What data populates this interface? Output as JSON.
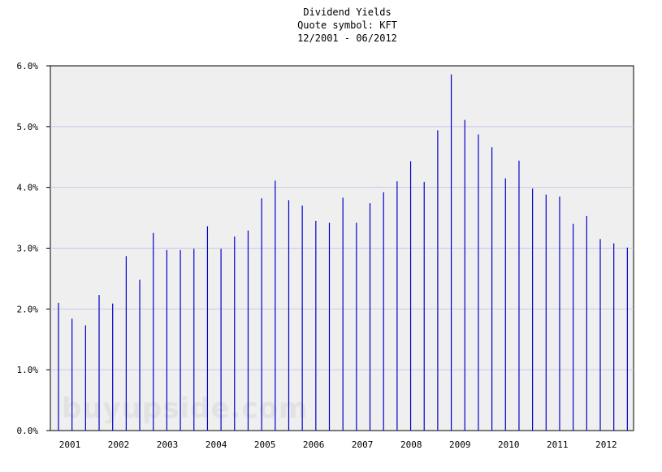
{
  "chart_data": {
    "type": "bar",
    "title": "Dividend Yields",
    "subtitle": "Quote symbol: KFT",
    "date_range": "12/2001 - 06/2012",
    "watermark": "buyupside.com",
    "ylim": [
      0,
      6
    ],
    "ytick_labels": [
      "0.0%",
      "1.0%",
      "2.0%",
      "3.0%",
      "4.0%",
      "5.0%",
      "6.0%"
    ],
    "xtick_labels": [
      "2001",
      "2002",
      "2003",
      "2004",
      "2005",
      "2006",
      "2007",
      "2008",
      "2009",
      "2010",
      "2011",
      "2012"
    ],
    "grid": true,
    "colors": {
      "bars": "#0000cc",
      "plot_background": "#efefef",
      "grid": "#c8c8e8"
    },
    "categories": [
      "2001-12",
      "2002-03",
      "2002-06",
      "2002-09",
      "2002-12",
      "2003-03",
      "2003-06",
      "2003-09",
      "2003-12",
      "2004-03",
      "2004-06",
      "2004-09",
      "2004-12",
      "2005-03",
      "2005-06",
      "2005-09",
      "2005-12",
      "2006-03",
      "2006-06",
      "2006-09",
      "2006-12",
      "2007-03",
      "2007-06",
      "2007-09",
      "2007-12",
      "2008-03",
      "2008-06",
      "2008-09",
      "2008-12",
      "2009-03",
      "2009-06",
      "2009-09",
      "2009-12",
      "2010-03",
      "2010-06",
      "2010-09",
      "2010-12",
      "2011-03",
      "2011-06",
      "2011-09",
      "2011-12",
      "2012-03",
      "2012-06"
    ],
    "values": [
      2.1,
      1.84,
      1.73,
      2.23,
      2.09,
      2.87,
      2.48,
      3.25,
      2.97,
      2.97,
      2.99,
      3.36,
      2.99,
      3.19,
      3.29,
      3.82,
      4.11,
      3.79,
      3.7,
      3.45,
      3.42,
      3.83,
      3.42,
      3.74,
      3.92,
      4.1,
      4.43,
      4.09,
      4.94,
      5.86,
      5.11,
      4.87,
      4.66,
      4.15,
      4.44,
      3.98,
      3.88,
      3.85,
      3.4,
      3.53,
      3.15,
      3.08,
      3.01
    ]
  }
}
